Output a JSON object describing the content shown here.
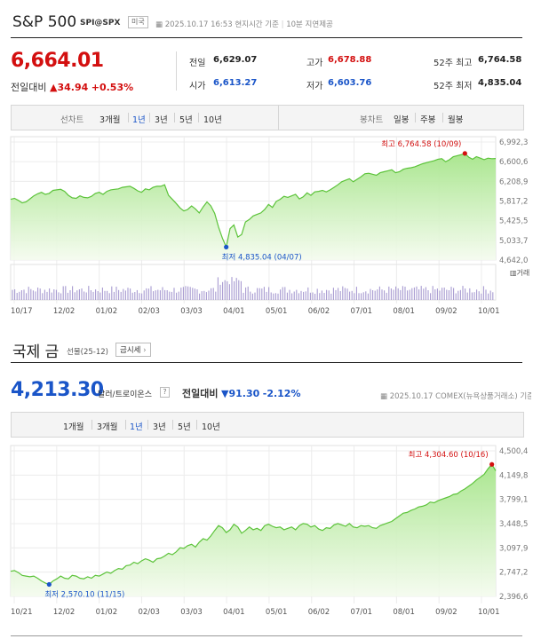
{
  "sp": {
    "title": "S&P 500",
    "symbol": "SPI@SPX",
    "country": "미국",
    "timestamp": "2025.10.17 16:53",
    "time_note": "현지시간 기준",
    "delay_note": "10분 지연제공",
    "price": "6,664.01",
    "change_label": "전일대비",
    "change_arrow": "▲",
    "change": "34.94",
    "change_pct": "+0.53%",
    "stats": {
      "prev_label": "전일",
      "prev": "6,629.07",
      "high_label": "고가",
      "high": "6,678.88",
      "w52h_label": "52주 최고",
      "w52h": "6,764.58",
      "open_label": "시가",
      "open": "6,613.27",
      "low_label": "저가",
      "low": "6,603.76",
      "w52l_label": "52주 최저",
      "w52l": "4,835.04"
    },
    "tabs_left_label": "선차트",
    "tabs_left": [
      "3개월",
      "1년",
      "3년",
      "5년",
      "10년"
    ],
    "tabs_right_label": "봉차트",
    "tabs_right": [
      "일봉",
      "주봉",
      "월봉"
    ],
    "selected_tab": "1년"
  },
  "gold": {
    "title": "국제 금",
    "sub": "선물(25-12)",
    "button": "금시세",
    "price": "4,213.30",
    "unit": "달러/트로이온스",
    "help": "?",
    "change_label": "전일대비",
    "change_arrow": "▼",
    "change": "91.30",
    "change_pct": "-2.12%",
    "timestamp": "2025.10.17",
    "source": "COMEX(뉴욕상품거래소) 기준",
    "tabs": [
      "1개월",
      "3개월",
      "1년",
      "3년",
      "5년",
      "10년"
    ],
    "selected_tab": "1년"
  },
  "chart_data": [
    {
      "type": "area",
      "ylim": [
        4642,
        6992.3
      ],
      "yticks": [
        "6,992,3",
        "6,600,6",
        "6,208,9",
        "5,817,2",
        "5,425,5",
        "5,033,7",
        "4,642,0"
      ],
      "xticks": [
        "10/17",
        "12/02",
        "01/02",
        "02/03",
        "03/03",
        "04/01",
        "05/01",
        "06/02",
        "07/01",
        "08/01",
        "09/02",
        "10/01"
      ],
      "annotations": [
        {
          "text": "최고 6,764.58 (10/09)",
          "value": 6764.58,
          "color": "#d30f0f"
        },
        {
          "text": "최저 4,835.04 (04/07)",
          "value": 4835.04,
          "color": "#1a55c8"
        }
      ],
      "volume_legend": "거래",
      "values": [
        5850,
        5870,
        5830,
        5780,
        5800,
        5860,
        5920,
        5960,
        5990,
        5950,
        5970,
        6030,
        6040,
        6050,
        6010,
        5930,
        5880,
        5870,
        5920,
        5890,
        5880,
        5910,
        5970,
        5990,
        5950,
        6010,
        6040,
        6050,
        6060,
        6090,
        6100,
        6110,
        6070,
        6020,
        5990,
        6060,
        6040,
        6090,
        6110,
        6110,
        6140,
        5930,
        5850,
        5770,
        5680,
        5620,
        5650,
        5720,
        5660,
        5580,
        5700,
        5800,
        5720,
        5570,
        5300,
        5080,
        4900,
        5270,
        5340,
        5100,
        5150,
        5400,
        5450,
        5520,
        5550,
        5580,
        5650,
        5750,
        5690,
        5810,
        5850,
        5910,
        5890,
        5920,
        5950,
        5860,
        5900,
        5980,
        5930,
        6000,
        6010,
        6030,
        6000,
        6040,
        6090,
        6140,
        6200,
        6230,
        6260,
        6200,
        6250,
        6300,
        6360,
        6370,
        6350,
        6330,
        6380,
        6400,
        6420,
        6440,
        6380,
        6400,
        6450,
        6470,
        6480,
        6500,
        6530,
        6560,
        6580,
        6600,
        6620,
        6650,
        6660,
        6600,
        6640,
        6700,
        6720,
        6740,
        6765,
        6690,
        6650,
        6700,
        6670,
        6640,
        6670,
        6660,
        6664
      ]
    },
    {
      "type": "area",
      "ylim": [
        2396.6,
        4500.4
      ],
      "yticks": [
        "4,500,4",
        "4,149,8",
        "3,799,1",
        "3,448,5",
        "3,097,9",
        "2,747,2",
        "2,396,6"
      ],
      "xticks": [
        "10/21",
        "12/02",
        "01/02",
        "02/03",
        "03/03",
        "04/01",
        "05/01",
        "06/02",
        "07/01",
        "08/01",
        "09/02",
        "10/01"
      ],
      "annotations": [
        {
          "text": "최고 4,304.60 (10/16)",
          "value": 4304.6,
          "color": "#d30f0f"
        },
        {
          "text": "최저 2,570.10 (11/15)",
          "value": 2570.1,
          "color": "#1a55c8"
        }
      ],
      "values": [
        2760,
        2770,
        2740,
        2700,
        2690,
        2680,
        2690,
        2660,
        2620,
        2590,
        2570,
        2620,
        2650,
        2690,
        2660,
        2650,
        2700,
        2690,
        2660,
        2650,
        2680,
        2660,
        2700,
        2690,
        2720,
        2750,
        2730,
        2770,
        2800,
        2790,
        2840,
        2850,
        2890,
        2870,
        2910,
        2940,
        2920,
        2890,
        2940,
        2950,
        2980,
        3020,
        3000,
        3040,
        3100,
        3090,
        3130,
        3150,
        3110,
        3180,
        3230,
        3210,
        3270,
        3350,
        3420,
        3390,
        3320,
        3360,
        3440,
        3400,
        3310,
        3350,
        3400,
        3360,
        3380,
        3350,
        3420,
        3440,
        3410,
        3390,
        3400,
        3360,
        3380,
        3400,
        3360,
        3420,
        3450,
        3440,
        3400,
        3420,
        3370,
        3350,
        3390,
        3380,
        3430,
        3450,
        3430,
        3410,
        3450,
        3400,
        3390,
        3420,
        3410,
        3420,
        3390,
        3380,
        3420,
        3440,
        3460,
        3480,
        3520,
        3560,
        3600,
        3610,
        3640,
        3660,
        3690,
        3700,
        3720,
        3760,
        3750,
        3780,
        3800,
        3820,
        3840,
        3870,
        3880,
        3920,
        3950,
        3990,
        4030,
        4080,
        4120,
        4160,
        4240,
        4305,
        4213
      ]
    }
  ]
}
